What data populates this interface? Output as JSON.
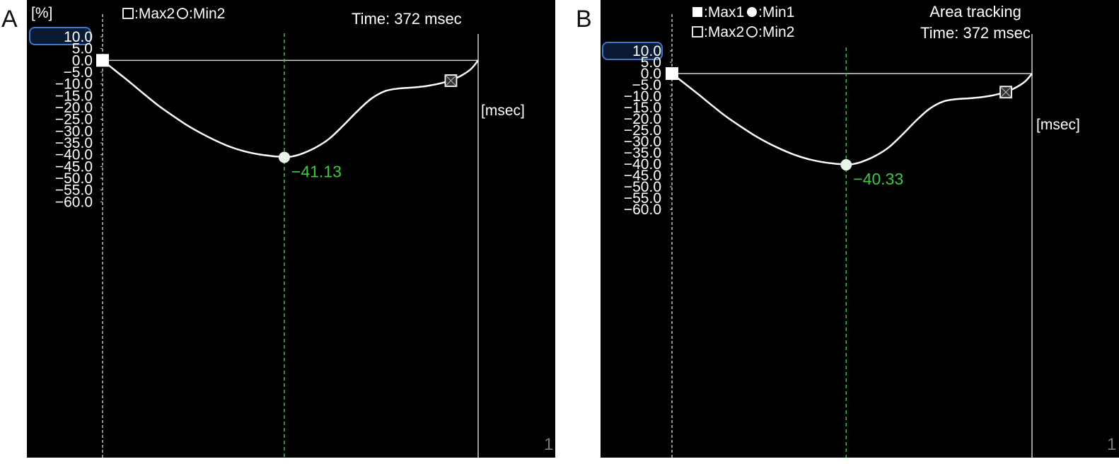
{
  "panels": [
    {
      "letter": "A",
      "unit_label": "[%]",
      "legend": [
        {
          "row": 0,
          "items": [
            {
              "marker": "open-square",
              "label": ":Max2"
            },
            {
              "marker": "open-circle",
              "label": ":Min2"
            }
          ]
        }
      ],
      "header_lines": [
        "Time: 372 msec"
      ],
      "x_unit_label": "[msec]",
      "corner_label": "1",
      "highlight_value": "10.0",
      "chart_data": {
        "type": "line",
        "yticks": [
          10,
          5,
          0,
          -5,
          -10,
          -15,
          -20,
          -25,
          -30,
          -35,
          -40,
          -45,
          -50,
          -55,
          -60
        ],
        "ytick_labels": [
          "10.0",
          "5.0",
          "0.0",
          "−5.0",
          "−10.0",
          "−15.0",
          "−20.0",
          "−25.0",
          "−30.0",
          "−35.0",
          "−40.0",
          "−45.0",
          "−50.0",
          "−55.0",
          "−60.0"
        ],
        "ylim": [
          -60,
          10
        ],
        "xlim": [
          0,
          372
        ],
        "series": [
          {
            "x": [
              0,
              14,
              28,
              42,
              56,
              70,
              84,
              98,
              112,
              126,
              140,
              154,
              168,
              176,
              180,
              187,
              196,
              210,
              224,
              238,
              252,
              266,
              280,
              294,
              308,
              322,
              336,
              350,
              364,
              372
            ],
            "y": [
              0,
              -4.8,
              -9.6,
              -14.6,
              -19.4,
              -23.6,
              -27.6,
              -31,
              -34,
              -36.6,
              -38.5,
              -39.8,
              -40.6,
              -40.9,
              -41.13,
              -40.8,
              -39.8,
              -37.2,
              -33.4,
              -27.8,
              -21.7,
              -16.3,
              -13,
              -11.9,
              -11.5,
              -10.8,
              -9.6,
              -7.6,
              -4,
              0
            ]
          }
        ],
        "markers": [
          {
            "type": "filled-square",
            "x": 0,
            "y": 0
          },
          {
            "type": "filled-circle",
            "x": 180,
            "y": -41.13
          },
          {
            "type": "open-square",
            "x": 345,
            "y": -8.6
          }
        ],
        "vline_x": 180,
        "peak_label": "−41.13"
      }
    },
    {
      "letter": "B",
      "unit_label": "",
      "legend": [
        {
          "row": 0,
          "items": [
            {
              "marker": "filled-square",
              "label": ":Max1"
            },
            {
              "marker": "filled-circle",
              "label": ":Min1"
            }
          ]
        },
        {
          "row": 1,
          "items": [
            {
              "marker": "open-square",
              "label": ":Max2"
            },
            {
              "marker": "open-circle",
              "label": ":Min2"
            }
          ]
        }
      ],
      "header_lines": [
        "Area tracking",
        "Time: 372 msec"
      ],
      "x_unit_label": "[msec]",
      "corner_label": "1",
      "highlight_value": "10.0",
      "chart_data": {
        "type": "line",
        "yticks": [
          10,
          5,
          0,
          -5,
          -10,
          -15,
          -20,
          -25,
          -30,
          -35,
          -40,
          -45,
          -50,
          -55,
          -60
        ],
        "ytick_labels": [
          "10.0",
          "5.0",
          "0.0",
          "−5.0",
          "−10.0",
          "−15.0",
          "−20.0",
          "−25.0",
          "−30.0",
          "−35.0",
          "−40.0",
          "−45.0",
          "−50.0",
          "−55.0",
          "−60.0"
        ],
        "ylim": [
          -60,
          10
        ],
        "xlim": [
          0,
          372
        ],
        "series": [
          {
            "x": [
              0,
              14,
              28,
              42,
              56,
              70,
              84,
              98,
              112,
              126,
              140,
              154,
              168,
              176,
              180,
              187,
              196,
              210,
              224,
              238,
              252,
              266,
              280,
              294,
              308,
              322,
              336,
              350,
              364,
              372
            ],
            "y": [
              0,
              -4.7,
              -9.4,
              -14.3,
              -19,
              -23.1,
              -27,
              -30.4,
              -33.3,
              -35.8,
              -37.7,
              -39,
              -39.8,
              -40.1,
              -40.33,
              -40,
              -39,
              -36.4,
              -32.6,
              -27,
              -20.9,
              -15.6,
              -12.4,
              -11.3,
              -10.9,
              -10.3,
              -9.2,
              -7.3,
              -3.8,
              0
            ]
          }
        ],
        "markers": [
          {
            "type": "filled-square",
            "x": 0,
            "y": 0
          },
          {
            "type": "filled-circle",
            "x": 180,
            "y": -40.33
          },
          {
            "type": "open-square",
            "x": 345,
            "y": -8.2
          }
        ],
        "vline_x": 180,
        "peak_label": "−40.33"
      }
    }
  ],
  "colors": {
    "background": "#000000",
    "curve": "#ffffff",
    "grid": "#cfcfcf",
    "peak_label": "#3ec93e",
    "vline": "#37c737",
    "highlight_box": "#3e78c8",
    "corner": "#7a7a7a"
  }
}
